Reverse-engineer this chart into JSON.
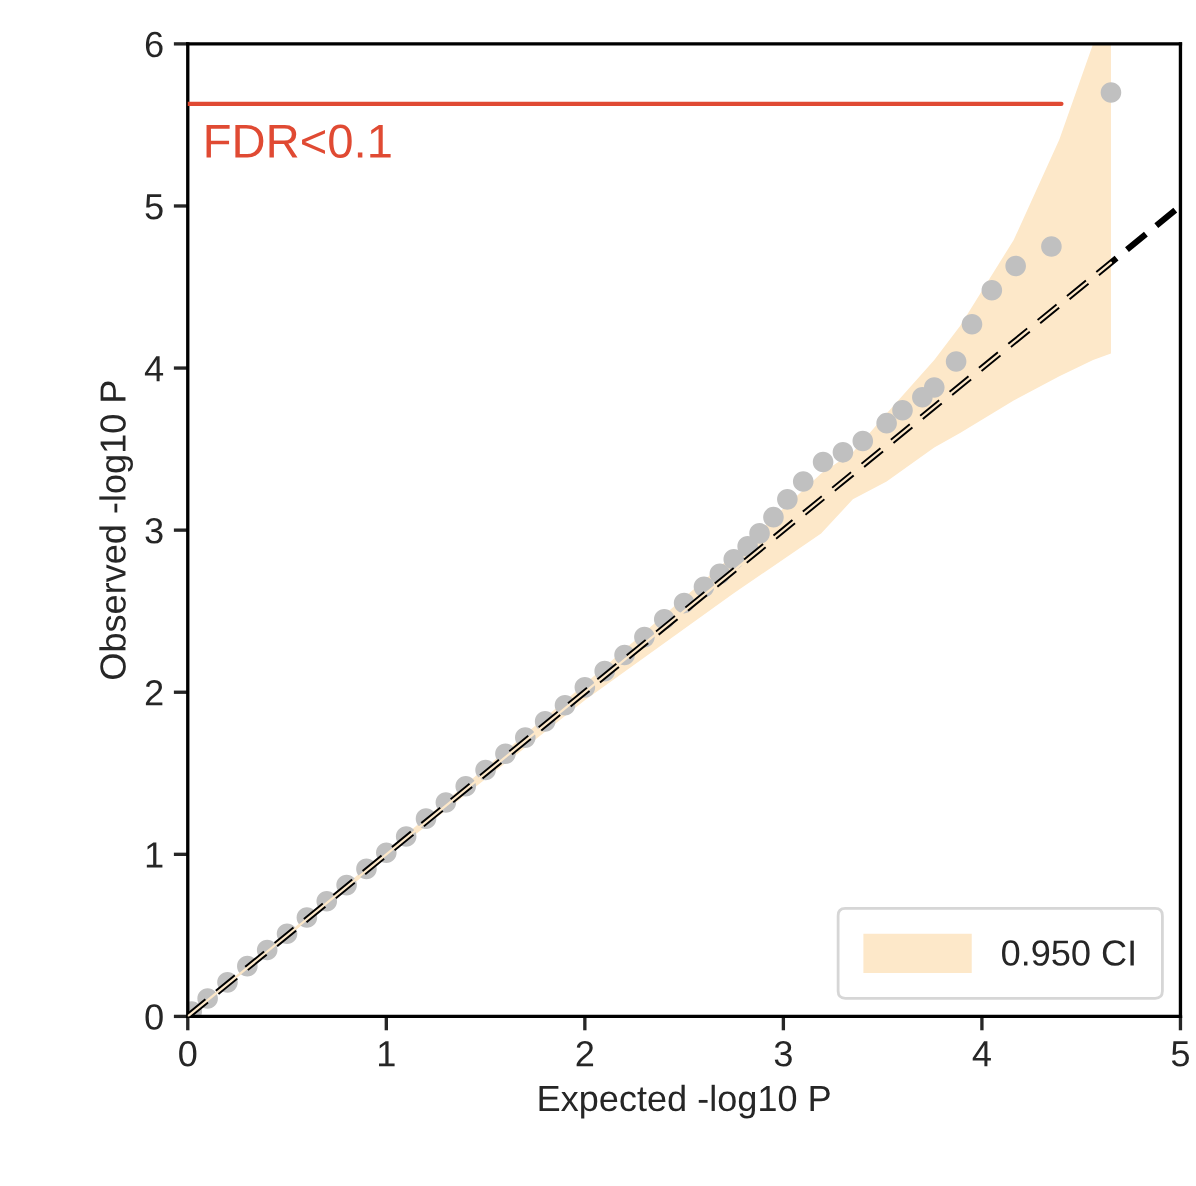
{
  "chart_data": {
    "type": "scatter",
    "xlabel": "Expected -log10 P",
    "ylabel": "Observed -log10 P",
    "xlim": [
      0,
      5
    ],
    "ylim": [
      0,
      6
    ],
    "xticks": [
      0,
      1,
      2,
      3,
      4,
      5
    ],
    "yticks": [
      0,
      1,
      2,
      3,
      4,
      5,
      6
    ],
    "grid": false,
    "legend": "bottom right",
    "series": [
      {
        "type": "line",
        "name": "0.950 CI",
        "color": "#fde8c9",
        "x": [
          0,
          1,
          2,
          2.75,
          3.19,
          3.35,
          3.52,
          3.76,
          3.89,
          4.16,
          4.39,
          4.56,
          4.65
        ],
        "values": [
          0,
          1,
          2,
          2.75,
          3.19,
          3.35,
          3.52,
          3.76,
          3.89,
          4.16,
          4.39,
          4.56,
          4.65
        ],
        "lower": [
          0,
          0.98,
          1.95,
          2.61,
          2.98,
          3.19,
          3.3,
          3.51,
          3.6,
          3.8,
          3.95,
          4.05,
          4.09
        ],
        "upper": [
          0,
          1.02,
          2.05,
          2.85,
          3.35,
          3.48,
          3.72,
          4.05,
          4.26,
          4.79,
          5.41,
          6.0,
          6.0
        ]
      },
      {
        "type": "line",
        "color": "#000000",
        "line_style": "dashed",
        "x": [
          0,
          5
        ],
        "values": [
          0,
          5
        ]
      },
      {
        "color": "#c0c0c0",
        "marker": "circle",
        "x": [
          0.02,
          0.1,
          0.2,
          0.3,
          0.4,
          0.5,
          0.6,
          0.7,
          0.8,
          0.9,
          1.0,
          1.1,
          1.2,
          1.3,
          1.4,
          1.5,
          1.6,
          1.7,
          1.8,
          1.9,
          2.0,
          2.1,
          2.2,
          2.3,
          2.4,
          2.5,
          2.6,
          2.68,
          2.75,
          2.82,
          2.88,
          2.95,
          3.02,
          3.1,
          3.2,
          3.3,
          3.4,
          3.52,
          3.6,
          3.7,
          3.76,
          3.87,
          3.95,
          4.05,
          4.17,
          4.35,
          4.65
        ],
        "values": [
          0.03,
          0.11,
          0.21,
          0.31,
          0.41,
          0.51,
          0.61,
          0.71,
          0.81,
          0.91,
          1.01,
          1.11,
          1.22,
          1.32,
          1.42,
          1.52,
          1.62,
          1.72,
          1.82,
          1.92,
          2.03,
          2.13,
          2.23,
          2.34,
          2.45,
          2.55,
          2.65,
          2.73,
          2.82,
          2.9,
          2.98,
          3.08,
          3.19,
          3.3,
          3.42,
          3.48,
          3.55,
          3.66,
          3.74,
          3.82,
          3.88,
          4.04,
          4.27,
          4.48,
          4.63,
          4.75,
          5.7
        ]
      }
    ],
    "ref_lines": [
      {
        "axis": "y",
        "value": 5.63,
        "label": "FDR<0.1",
        "color": "#e04a33"
      }
    ]
  }
}
